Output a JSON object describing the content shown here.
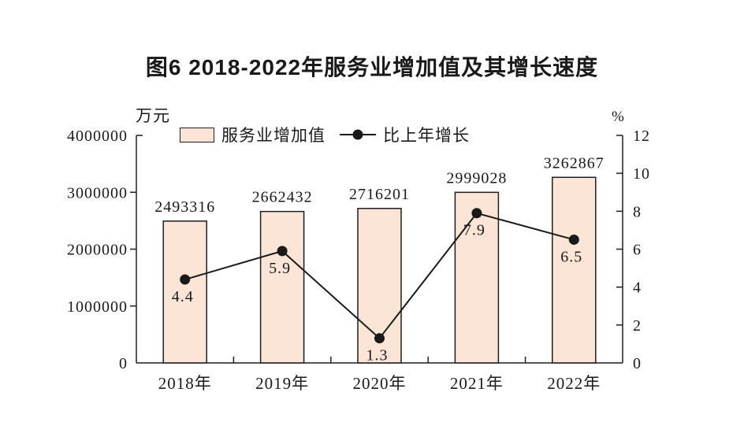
{
  "title": "图6 2018-2022年服务业增加值及其增长速度",
  "axis_unit_left": "万元",
  "axis_unit_right": "%",
  "legend": {
    "position": "top",
    "items": [
      {
        "label": "服务业增加值",
        "marker": "bar-swatch"
      },
      {
        "label": "比上年增长",
        "marker": "line-dot"
      }
    ]
  },
  "chart_data": {
    "type": "bar+line",
    "title": "图6 2018-2022年服务业增加值及其增长速度",
    "categories": [
      "2018年",
      "2019年",
      "2020年",
      "2021年",
      "2022年"
    ],
    "series": [
      {
        "name": "服务业增加值",
        "type": "bar",
        "axis": "left",
        "unit": "万元",
        "values": [
          2493316,
          2662432,
          2716201,
          2999028,
          3262867
        ]
      },
      {
        "name": "比上年增长",
        "type": "line",
        "axis": "right",
        "unit": "%",
        "values": [
          4.4,
          5.9,
          1.3,
          7.9,
          6.5
        ]
      }
    ],
    "left_axis": {
      "unit": "万元",
      "min": 0,
      "max": 4000000,
      "tick_step": 1000000,
      "tick_labels": [
        "0",
        "1000000",
        "2000000",
        "3000000",
        "4000000"
      ]
    },
    "right_axis": {
      "unit": "%",
      "min": 0,
      "max": 12,
      "tick_step": 2,
      "tick_labels": [
        "0",
        "2",
        "4",
        "6",
        "8",
        "10",
        "12"
      ]
    },
    "data_labels": {
      "bar": [
        "2493316",
        "2662432",
        "2716201",
        "2999028",
        "3262867"
      ],
      "line": [
        "4.4",
        "5.9",
        "1.3",
        "7.9",
        "6.5"
      ]
    },
    "legend_position": "top",
    "grid": false,
    "colors": {
      "bar_fill": "#fce4d6",
      "bar_stroke": "#1f1f1f",
      "line": "#1a1a1a",
      "text": "#1a1a1a"
    }
  }
}
